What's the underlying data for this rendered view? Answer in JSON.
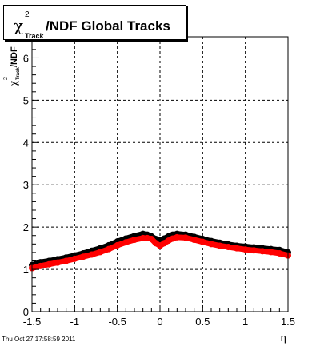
{
  "title": {
    "chi": "χ",
    "sup": "2",
    "sub": "Track",
    "rest": "/NDF  Global Tracks"
  },
  "ylabel": {
    "chi": "χ",
    "sup": "2",
    "sub": "Track",
    "rest": "/NDF"
  },
  "timestamp": "Thu Oct 27 17:58:59 2011",
  "colors": {
    "series_black": "#000000",
    "series_red": "#ff0000",
    "grid": "#000000"
  },
  "chart_data": {
    "type": "scatter",
    "xlabel": "η",
    "xlim": [
      -1.5,
      1.5
    ],
    "ylim": [
      0,
      6.5
    ],
    "grid": true,
    "x_ticks": [
      "-1.5",
      "-1",
      "-0.5",
      "0",
      "0.5",
      "1",
      "1.5"
    ],
    "x_tick_values": [
      -1.5,
      -1,
      -0.5,
      0,
      0.5,
      1,
      1.5
    ],
    "y_ticks": [
      "0",
      "1",
      "2",
      "3",
      "4",
      "5",
      "6"
    ],
    "y_tick_values": [
      0,
      1,
      2,
      3,
      4,
      5,
      6
    ],
    "series": [
      {
        "color": "black",
        "x": [
          -1.5,
          -1.4,
          -1.3,
          -1.2,
          -1.1,
          -1.0,
          -0.9,
          -0.8,
          -0.7,
          -0.6,
          -0.5,
          -0.4,
          -0.3,
          -0.2,
          -0.15,
          -0.1,
          -0.05,
          0.0,
          0.05,
          0.1,
          0.15,
          0.2,
          0.3,
          0.4,
          0.5,
          0.6,
          0.7,
          0.8,
          0.9,
          1.0,
          1.1,
          1.2,
          1.3,
          1.4,
          1.5
        ],
        "y": [
          1.1,
          1.17,
          1.2,
          1.24,
          1.28,
          1.33,
          1.38,
          1.44,
          1.5,
          1.57,
          1.66,
          1.73,
          1.79,
          1.84,
          1.82,
          1.78,
          1.72,
          1.69,
          1.73,
          1.78,
          1.82,
          1.84,
          1.82,
          1.77,
          1.72,
          1.67,
          1.63,
          1.59,
          1.56,
          1.54,
          1.52,
          1.5,
          1.48,
          1.46,
          1.4
        ]
      },
      {
        "color": "red",
        "x": [
          -1.5,
          -1.4,
          -1.3,
          -1.2,
          -1.1,
          -1.0,
          -0.9,
          -0.8,
          -0.7,
          -0.6,
          -0.5,
          -0.4,
          -0.3,
          -0.2,
          -0.15,
          -0.1,
          -0.05,
          0.0,
          0.05,
          0.1,
          0.15,
          0.2,
          0.3,
          0.4,
          0.5,
          0.6,
          0.7,
          0.8,
          0.9,
          1.0,
          1.1,
          1.2,
          1.3,
          1.4,
          1.5
        ],
        "y": [
          1.03,
          1.08,
          1.12,
          1.16,
          1.2,
          1.25,
          1.3,
          1.35,
          1.41,
          1.48,
          1.57,
          1.64,
          1.7,
          1.74,
          1.74,
          1.72,
          1.62,
          1.56,
          1.62,
          1.68,
          1.73,
          1.76,
          1.75,
          1.7,
          1.65,
          1.6,
          1.56,
          1.53,
          1.5,
          1.47,
          1.45,
          1.43,
          1.41,
          1.38,
          1.33
        ]
      }
    ]
  }
}
